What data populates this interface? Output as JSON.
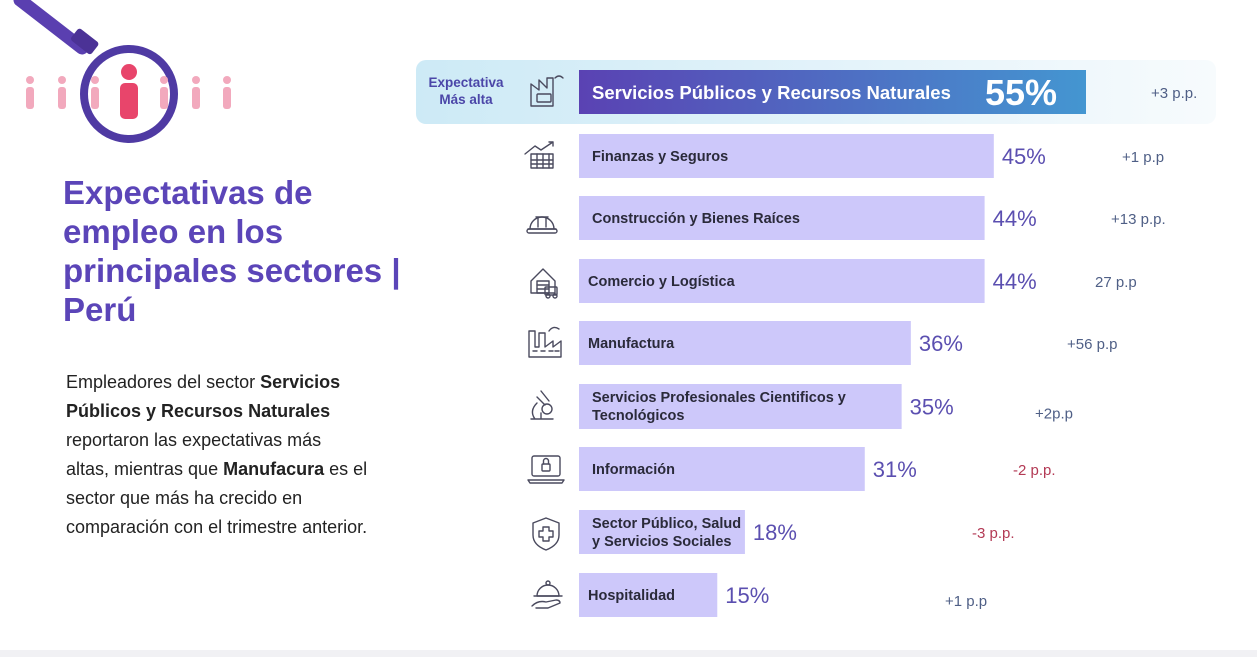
{
  "title_lines": [
    "Expectativas de",
    "empleo en los",
    "principales sectores |",
    "Perú"
  ],
  "description": {
    "l1_a": "Empleadores del sector ",
    "l1_b": "Servicios",
    "l2": "Públicos y Recursos Naturales",
    "l3": "reportaron las expectativas más",
    "l4_a": "altas, mientras que ",
    "l4_b": "Manufacura",
    "l4_c": " es el",
    "l5": "sector que más ha crecido en",
    "l6": "comparación con el trimestre anterior."
  },
  "highlight_label": [
    "Expectativa",
    "Más alta"
  ],
  "colors": {
    "title": "#5b45b8",
    "bar": "#cdc8fa",
    "bar_top_start": "#5a42b3",
    "bar_top_end": "#4496d1",
    "positive": "#4f5f86",
    "negative": "#b33a55",
    "figure_pink": "#f2a9bd",
    "figure_red": "#e8456b",
    "lens": "#4f3aa3"
  },
  "chart_data": {
    "type": "bar",
    "orientation": "horizontal",
    "xlim": [
      0,
      55
    ],
    "categories": [
      [
        "Servicios Públicos y Recursos Naturales"
      ],
      [
        "Finanzas y Seguros"
      ],
      [
        "Construcción y Bienes Raíces"
      ],
      [
        "Comercio y Logística"
      ],
      [
        "Manufactura"
      ],
      [
        "Servicios  Profesionales Cientificos  y",
        "Tecnológicos"
      ],
      [
        "Información"
      ],
      [
        "Sector Público, Salud",
        "y Servicios Sociales"
      ],
      [
        "Hospitalidad"
      ]
    ],
    "values": [
      55,
      45,
      44,
      44,
      36,
      35,
      31,
      18,
      15
    ],
    "value_labels": [
      "55%",
      "45%",
      "44%",
      "44%",
      "36%",
      "35%",
      "31%",
      "18%",
      "15%"
    ],
    "changes": [
      "+3 p.p.",
      "+1 p.p",
      "+13 p.p.",
      "27 p.p",
      "+56 p.p",
      "+2p.p",
      "-2 p.p.",
      "-3 p.p.",
      "+1 p.p"
    ],
    "icons": [
      "factory-icon",
      "finance-chart-icon",
      "hard-hat-icon",
      "warehouse-truck-icon",
      "manufacturing-plant-icon",
      "microscope-icon",
      "laptop-lock-icon",
      "health-shield-icon",
      "serving-cloche-icon"
    ]
  }
}
